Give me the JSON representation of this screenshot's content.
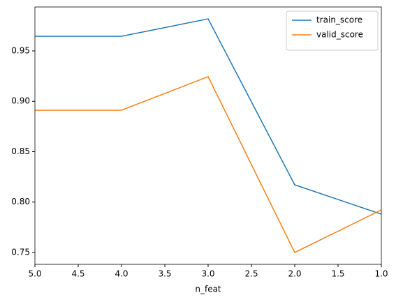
{
  "chart_data": {
    "type": "line",
    "x": [
      5,
      4,
      3,
      2,
      1
    ],
    "series": [
      {
        "name": "train_score",
        "color": "#1f77b4",
        "values": [
          0.9645,
          0.9645,
          0.9818,
          0.8171,
          0.788
        ]
      },
      {
        "name": "valid_score",
        "color": "#ff7f0e",
        "values": [
          0.8912,
          0.8912,
          0.9244,
          0.75,
          0.7922
        ]
      }
    ],
    "x_label": "n_feat",
    "xlim": [
      5,
      1
    ],
    "xticks": [
      {
        "value": 5,
        "label": "5.0"
      },
      {
        "value": 4.5,
        "label": "4.5"
      },
      {
        "value": 4,
        "label": "4.0"
      },
      {
        "value": 3.5,
        "label": "3.5"
      },
      {
        "value": 3,
        "label": "3.0"
      },
      {
        "value": 2.5,
        "label": "2.5"
      },
      {
        "value": 2,
        "label": "2.0"
      },
      {
        "value": 1.5,
        "label": "1.5"
      },
      {
        "value": 1,
        "label": "1.0"
      }
    ],
    "ylim": [
      0.7382,
      0.9936
    ],
    "yticks": [
      0.75,
      {
        "value": 0.8,
        "label": "0.80"
      },
      0.85,
      {
        "value": 0.9,
        "label": "0.90"
      },
      0.95
    ],
    "legend": "upper right",
    "grid": false
  }
}
